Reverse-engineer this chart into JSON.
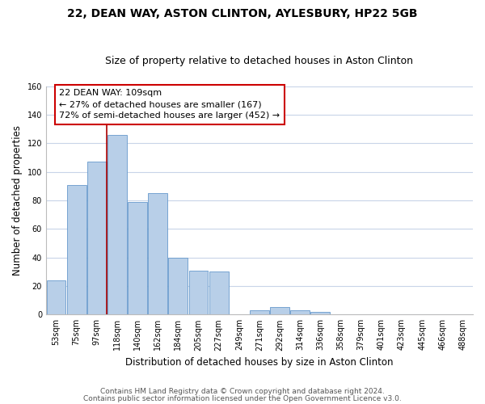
{
  "title": "22, DEAN WAY, ASTON CLINTON, AYLESBURY, HP22 5GB",
  "subtitle": "Size of property relative to detached houses in Aston Clinton",
  "xlabel": "Distribution of detached houses by size in Aston Clinton",
  "ylabel": "Number of detached properties",
  "bar_labels": [
    "53sqm",
    "75sqm",
    "97sqm",
    "118sqm",
    "140sqm",
    "162sqm",
    "184sqm",
    "205sqm",
    "227sqm",
    "249sqm",
    "271sqm",
    "292sqm",
    "314sqm",
    "336sqm",
    "358sqm",
    "379sqm",
    "401sqm",
    "423sqm",
    "445sqm",
    "466sqm",
    "488sqm"
  ],
  "bar_values": [
    24,
    91,
    107,
    126,
    79,
    85,
    40,
    31,
    30,
    0,
    3,
    5,
    3,
    2,
    0,
    0,
    0,
    0,
    0,
    0,
    0
  ],
  "bar_color": "#b8cfe8",
  "bar_edge_color": "#6699cc",
  "vline_x": 2.5,
  "vline_color": "#aa0000",
  "annotation_text": "22 DEAN WAY: 109sqm\n← 27% of detached houses are smaller (167)\n72% of semi-detached houses are larger (452) →",
  "annotation_box_color": "#ffffff",
  "annotation_box_edge_color": "#cc0000",
  "ylim": [
    0,
    160
  ],
  "yticks": [
    0,
    20,
    40,
    60,
    80,
    100,
    120,
    140,
    160
  ],
  "footer_line1": "Contains HM Land Registry data © Crown copyright and database right 2024.",
  "footer_line2": "Contains public sector information licensed under the Open Government Licence v3.0.",
  "background_color": "#ffffff",
  "grid_color": "#c8d4e8",
  "title_fontsize": 10,
  "subtitle_fontsize": 9,
  "axis_label_fontsize": 8.5,
  "tick_fontsize": 7,
  "annotation_fontsize": 8,
  "footer_fontsize": 6.5
}
